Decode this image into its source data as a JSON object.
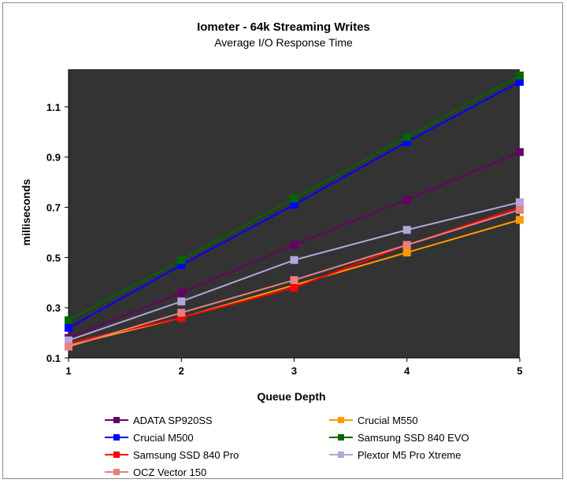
{
  "chart_data": {
    "type": "line",
    "title": "Iometer - 64k Streaming Writes",
    "subtitle": "Average I/O Response Time",
    "xlabel": "Queue Depth",
    "ylabel": "milliseconds",
    "x": [
      1,
      2,
      3,
      4,
      5
    ],
    "xlim": [
      1,
      5
    ],
    "ylim": [
      0.1,
      1.25
    ],
    "yticks": [
      0.1,
      0.3,
      0.5,
      0.7,
      0.9,
      1.1
    ],
    "ytick_labels": [
      "0.1",
      "0.3",
      "0.5",
      "0.7",
      "0.9",
      "1.1"
    ],
    "xtick_labels": [
      "1",
      "2",
      "3",
      "4",
      "5"
    ],
    "plot_background": "#333333",
    "grid": false,
    "legend_position": "bottom",
    "series": [
      {
        "name": "ADATA SP920SS",
        "color": "#660066",
        "values": [
          0.18,
          0.36,
          0.55,
          0.73,
          0.92
        ]
      },
      {
        "name": "Crucial M550",
        "color": "#ff9900",
        "values": [
          0.15,
          0.26,
          0.39,
          0.52,
          0.65
        ]
      },
      {
        "name": "Crucial M500",
        "color": "#0000ff",
        "values": [
          0.22,
          0.47,
          0.71,
          0.96,
          1.2
        ]
      },
      {
        "name": "Samsung SSD 840 EVO",
        "color": "#006600",
        "values": [
          0.25,
          0.49,
          0.735,
          0.98,
          1.225
        ]
      },
      {
        "name": "Samsung SSD 840 Pro",
        "color": "#ff0000",
        "values": [
          0.16,
          0.26,
          0.38,
          0.55,
          0.7
        ]
      },
      {
        "name": "Plextor M5 Pro Xtreme",
        "color": "#b3a6d9",
        "values": [
          0.17,
          0.325,
          0.49,
          0.61,
          0.72
        ]
      },
      {
        "name": "OCZ Vector 150",
        "color": "#e68080",
        "values": [
          0.145,
          0.28,
          0.41,
          0.55,
          0.69
        ]
      }
    ]
  }
}
